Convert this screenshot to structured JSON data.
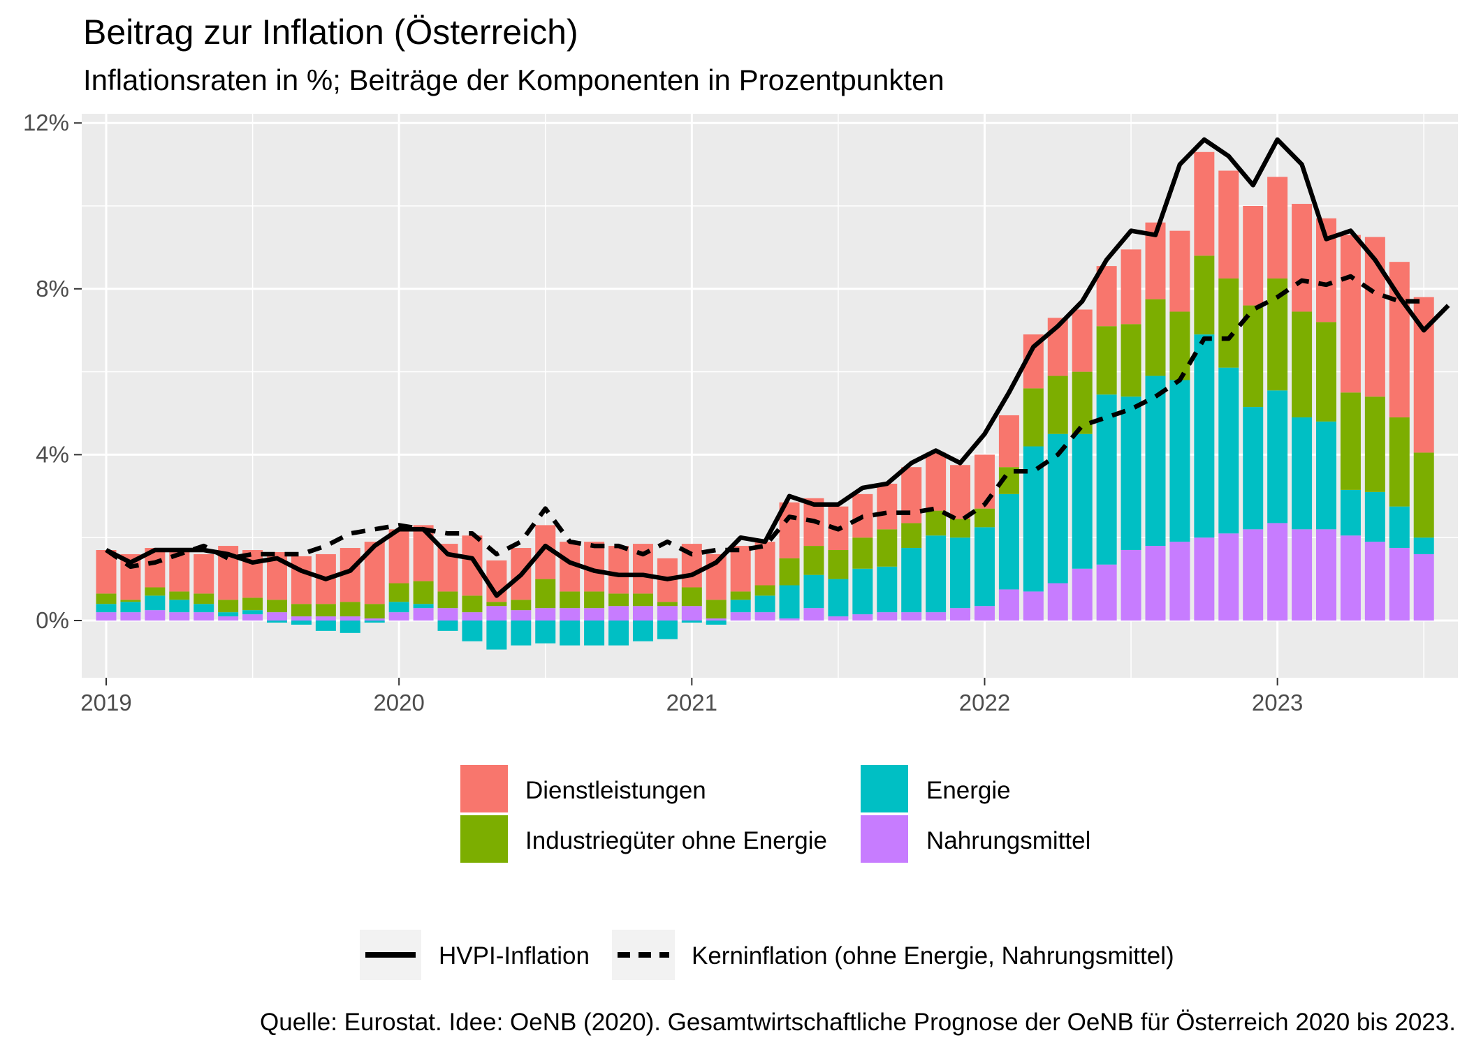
{
  "title": "Beitrag zur Inflation (Österreich)",
  "subtitle": "Inflationsraten in %; Beiträge der Komponenten in Prozentpunkten",
  "caption": "Quelle: Eurostat. Idee: OeNB (2020). Gesamtwirtschaftliche Prognose der OeNB für Österreich 2020 bis 2023.",
  "chart_data": {
    "type": "bar",
    "stacked": true,
    "title": "Beitrag zur Inflation (Österreich)",
    "subtitle": "Inflationsraten in %; Beiträge der Komponenten in Prozentpunkten",
    "xlabel": "",
    "ylabel": "",
    "x_ticks": [
      "2019",
      "2020",
      "2021",
      "2022",
      "2023"
    ],
    "y_ticks": [
      "0%",
      "4%",
      "8%",
      "12%"
    ],
    "ylim": [
      -1.6,
      12.6
    ],
    "xlim": [
      "2018-12",
      "2023-09"
    ],
    "grid": true,
    "legend_position": "bottom",
    "months": [
      "2019-01",
      "2019-02",
      "2019-03",
      "2019-04",
      "2019-05",
      "2019-06",
      "2019-07",
      "2019-08",
      "2019-09",
      "2019-10",
      "2019-11",
      "2019-12",
      "2020-01",
      "2020-02",
      "2020-03",
      "2020-04",
      "2020-05",
      "2020-06",
      "2020-07",
      "2020-08",
      "2020-09",
      "2020-10",
      "2020-11",
      "2020-12",
      "2021-01",
      "2021-02",
      "2021-03",
      "2021-04",
      "2021-05",
      "2021-06",
      "2021-07",
      "2021-08",
      "2021-09",
      "2021-10",
      "2021-11",
      "2021-12",
      "2022-01",
      "2022-02",
      "2022-03",
      "2022-04",
      "2022-05",
      "2022-06",
      "2022-07",
      "2022-08",
      "2022-09",
      "2022-10",
      "2022-11",
      "2022-12",
      "2023-01",
      "2023-02",
      "2023-03",
      "2023-04",
      "2023-05",
      "2023-06",
      "2023-07"
    ],
    "bar_series": [
      {
        "name": "Nahrungsmittel",
        "color": "#C77CFF",
        "values": [
          0.2,
          0.2,
          0.25,
          0.2,
          0.2,
          0.1,
          0.15,
          0.2,
          0.1,
          0.1,
          0.1,
          0.05,
          0.2,
          0.3,
          0.3,
          0.2,
          0.35,
          0.25,
          0.3,
          0.3,
          0.3,
          0.35,
          0.35,
          0.35,
          0.35,
          0.05,
          0.2,
          0.2,
          0.05,
          0.3,
          0.1,
          0.15,
          0.2,
          0.2,
          0.2,
          0.3,
          0.35,
          0.75,
          0.7,
          0.9,
          1.25,
          1.35,
          1.7,
          1.8,
          1.9,
          2.0,
          2.1,
          2.2,
          2.35,
          2.2,
          2.2,
          2.05,
          1.9,
          1.75,
          1.6
        ]
      },
      {
        "name": "Energie",
        "color": "#00BFC4",
        "values": [
          0.2,
          0.25,
          0.35,
          0.3,
          0.2,
          0.1,
          0.1,
          -0.05,
          -0.1,
          -0.25,
          -0.3,
          -0.05,
          0.25,
          0.1,
          -0.25,
          -0.5,
          -0.7,
          -0.6,
          -0.55,
          -0.6,
          -0.6,
          -0.6,
          -0.5,
          -0.45,
          -0.05,
          -0.1,
          0.3,
          0.4,
          0.8,
          0.8,
          0.9,
          1.1,
          1.1,
          1.55,
          1.85,
          1.7,
          1.9,
          2.3,
          3.5,
          3.6,
          3.25,
          4.1,
          3.7,
          4.1,
          3.9,
          4.9,
          4.0,
          2.95,
          3.2,
          2.7,
          2.6,
          1.1,
          1.2,
          1.0,
          0.4
        ]
      },
      {
        "name": "Industriegüter ohne Energie",
        "color": "#7CAE00",
        "values": [
          0.25,
          0.05,
          0.2,
          0.2,
          0.25,
          0.3,
          0.3,
          0.3,
          0.3,
          0.3,
          0.35,
          0.35,
          0.45,
          0.55,
          0.4,
          0.4,
          0.1,
          0.25,
          0.7,
          0.4,
          0.4,
          0.3,
          0.3,
          0.1,
          0.45,
          0.45,
          0.2,
          0.25,
          0.65,
          0.7,
          0.7,
          0.75,
          0.9,
          0.6,
          0.6,
          0.45,
          0.45,
          0.65,
          1.4,
          1.4,
          1.5,
          1.65,
          1.75,
          1.85,
          1.65,
          1.9,
          2.15,
          2.45,
          2.7,
          2.55,
          2.4,
          2.35,
          2.3,
          2.15,
          2.05
        ]
      },
      {
        "name": "Dienstleistungen",
        "color": "#F8766D",
        "values": [
          1.05,
          1.1,
          0.95,
          1.05,
          0.95,
          1.3,
          1.15,
          1.15,
          1.15,
          1.2,
          1.3,
          1.5,
          1.3,
          1.35,
          1.15,
          1.45,
          1.0,
          1.25,
          1.3,
          1.2,
          1.2,
          1.15,
          1.2,
          1.05,
          1.05,
          1.1,
          1.1,
          1.05,
          1.35,
          1.15,
          1.05,
          1.05,
          1.1,
          1.35,
          1.4,
          1.3,
          1.3,
          1.25,
          1.3,
          1.4,
          1.5,
          1.45,
          1.8,
          1.85,
          1.95,
          2.5,
          2.6,
          2.4,
          2.45,
          2.6,
          2.5,
          3.8,
          3.85,
          3.75,
          3.75
        ]
      }
    ],
    "line_series": [
      {
        "name": "HVPI-Inflation",
        "style": "solid",
        "color": "#000000",
        "values": [
          1.7,
          1.4,
          1.7,
          1.7,
          1.7,
          1.6,
          1.4,
          1.5,
          1.2,
          1.0,
          1.2,
          1.8,
          2.2,
          2.2,
          1.6,
          1.5,
          0.6,
          1.1,
          1.8,
          1.4,
          1.2,
          1.1,
          1.1,
          1.0,
          1.1,
          1.4,
          2.0,
          1.9,
          3.0,
          2.8,
          2.8,
          3.2,
          3.3,
          3.8,
          4.1,
          3.8,
          4.5,
          5.5,
          6.6,
          7.1,
          7.7,
          8.7,
          9.4,
          9.3,
          11.0,
          11.6,
          11.2,
          10.5,
          11.6,
          11.0,
          9.2,
          9.4,
          8.7,
          7.8,
          7.0,
          7.6
        ],
        "months_note": "extends to 2023-08"
      },
      {
        "name": "Kerninflation (ohne Energie, Nahrungsmittel)",
        "style": "dashed",
        "color": "#000000",
        "values": [
          1.7,
          1.3,
          1.4,
          1.6,
          1.8,
          1.5,
          1.6,
          1.6,
          1.6,
          1.8,
          2.1,
          2.2,
          2.3,
          2.2,
          2.1,
          2.1,
          1.6,
          1.9,
          2.7,
          1.9,
          1.8,
          1.8,
          1.6,
          1.9,
          1.6,
          1.7,
          1.7,
          1.8,
          2.5,
          2.4,
          2.2,
          2.5,
          2.6,
          2.6,
          2.7,
          2.4,
          2.8,
          3.6,
          3.6,
          4.0,
          4.7,
          4.9,
          5.1,
          5.4,
          5.8,
          6.8,
          6.8,
          7.5,
          7.8,
          8.2,
          8.1,
          8.3,
          7.9,
          7.7,
          7.7
        ]
      }
    ]
  },
  "legend": {
    "fill_items": [
      {
        "label": "Dienstleistungen",
        "color": "#F8766D"
      },
      {
        "label": "Energie",
        "color": "#00BFC4"
      },
      {
        "label": "Industriegüter ohne Energie",
        "color": "#7CAE00"
      },
      {
        "label": "Nahrungsmittel",
        "color": "#C77CFF"
      }
    ],
    "line_items": [
      {
        "label": "HVPI-Inflation",
        "style": "solid"
      },
      {
        "label": "Kerninflation (ohne Energie, Nahrungsmittel)",
        "style": "dashed"
      }
    ]
  }
}
